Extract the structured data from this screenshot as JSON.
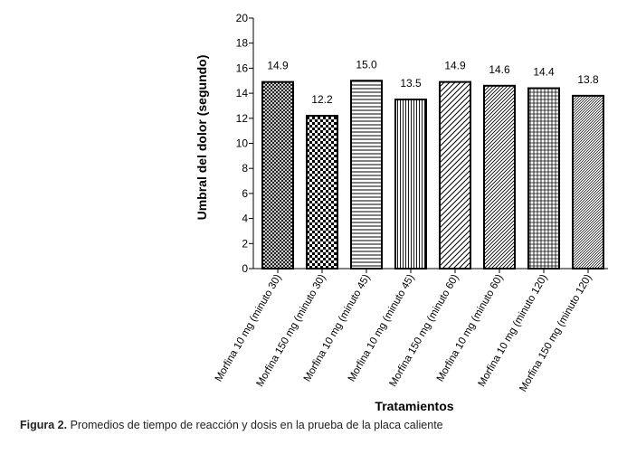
{
  "chart_data": {
    "type": "bar",
    "categories": [
      "Morfina 10 mg (minuto 30)",
      "Morfina 150 mg (minuto 30)",
      "Morfina 10 mg (minuto 45)",
      "Morfina 10 mg (minuto 45)",
      "Morfina 150 mg (minuto 60)",
      "Morfina 10 mg (minuto 60)",
      "Morfina 10 mg (minuto 120)",
      "Morfina 150 mg (minuto 120)"
    ],
    "values": [
      14.9,
      12.2,
      15.0,
      13.5,
      14.9,
      14.6,
      14.4,
      13.8
    ],
    "data_labels": [
      "14.9",
      "12.2",
      "15.0",
      "13.5",
      "14.9",
      "14.6",
      "14.4",
      "13.8"
    ],
    "patterns": [
      "crosshatch-fine",
      "checker",
      "horizontal",
      "vertical",
      "diagonal",
      "diagonal-dense",
      "grid",
      "diagonal-fine"
    ],
    "ylabel": "Umbral del dolor (segundo)",
    "xlabel": "Tratamientos",
    "ylim": [
      0,
      20
    ],
    "yticks": [
      0,
      2,
      4,
      6,
      8,
      10,
      12,
      14,
      16,
      18,
      20
    ],
    "grid": false,
    "legend": "none"
  },
  "caption": {
    "label": "Figura 2.",
    "text": " Promedios de tiempo de reacción y dosis en la prueba de la placa caliente"
  }
}
